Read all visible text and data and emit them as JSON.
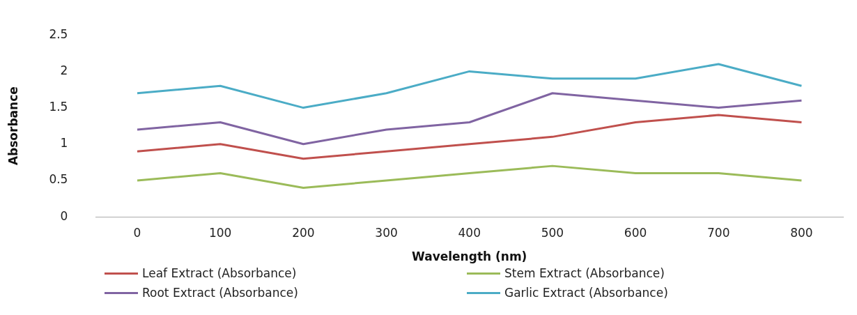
{
  "chart_data": {
    "type": "line",
    "xlabel": "Wavelength (nm)",
    "ylabel": "Absorbance",
    "categories": [
      "0",
      "100",
      "200",
      "300",
      "400",
      "500",
      "600",
      "700",
      "800"
    ],
    "ylim": [
      0,
      2.5
    ],
    "yticks": [
      0,
      0.5,
      1,
      1.5,
      2,
      2.5
    ],
    "grid": false,
    "legend": "bottom",
    "marker": "none",
    "line_style": "solid",
    "series": [
      {
        "name": "Leaf Extract (Absorbance)",
        "color": "#c0504d",
        "values": [
          0.9,
          1.0,
          0.8,
          0.9,
          1.0,
          1.1,
          1.3,
          1.4,
          1.3
        ]
      },
      {
        "name": "Stem Extract (Absorbance)",
        "color": "#9bbb59",
        "values": [
          0.5,
          0.6,
          0.4,
          0.5,
          0.6,
          0.7,
          0.6,
          0.6,
          0.5
        ]
      },
      {
        "name": "Root Extract (Absorbance)",
        "color": "#8064a2",
        "values": [
          1.2,
          1.3,
          1.0,
          1.2,
          1.3,
          1.7,
          1.6,
          1.5,
          1.6
        ]
      },
      {
        "name": "Garlic Extract (Absorbance)",
        "color": "#4bacc6",
        "values": [
          1.7,
          1.8,
          1.5,
          1.7,
          2.0,
          1.9,
          1.9,
          2.1,
          1.8
        ]
      }
    ]
  }
}
